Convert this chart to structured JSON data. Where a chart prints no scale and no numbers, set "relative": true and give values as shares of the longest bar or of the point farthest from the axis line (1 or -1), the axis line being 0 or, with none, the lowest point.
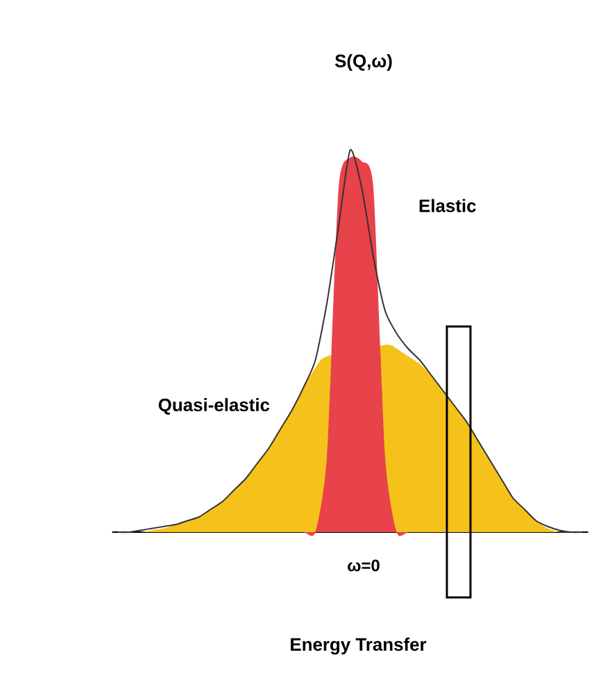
{
  "chart_data": {
    "type": "area",
    "relative": true,
    "title": "S(Q,ω)",
    "categories": [
      null,
      null,
      null,
      null,
      null,
      null,
      null,
      null,
      null,
      null,
      null,
      null,
      null,
      null,
      null,
      null,
      null,
      null,
      null,
      null,
      null,
      null,
      null,
      null,
      null,
      null,
      null,
      null,
      null,
      null,
      null,
      null,
      null,
      null,
      null,
      null,
      null,
      null,
      null,
      null,
      null
    ],
    "series": [
      {
        "name": "Quasi-elastic",
        "type": "area",
        "color": "#f5c21b",
        "values": [
          0,
          0,
          0,
          0.005,
          0.01,
          0.02,
          0.03,
          0.04,
          0.06,
          0.08,
          0.11,
          0.14,
          0.18,
          0.22,
          0.27,
          0.32,
          0.38,
          0.43,
          0.46,
          null,
          null,
          null,
          null,
          0.49,
          0.48,
          0.46,
          0.44,
          0.41,
          0.37,
          0.33,
          0.29,
          0.24,
          0.19,
          0.14,
          0.09,
          0.06,
          0.03,
          0.01,
          0,
          0,
          0
        ]
      },
      {
        "name": "Elastic",
        "type": "area",
        "color": "#e8424a",
        "values": [
          0,
          0,
          0,
          0,
          0,
          0,
          0,
          0,
          0,
          0,
          0,
          0,
          0,
          0,
          0,
          0,
          0,
          0,
          0.2,
          0.9,
          0.98,
          0.97,
          0.9,
          0.2,
          0,
          0,
          0,
          0,
          0,
          0,
          0,
          0,
          0,
          0,
          0,
          0,
          0,
          0,
          0,
          0,
          0
        ]
      },
      {
        "type": "line",
        "color": "#333333",
        "values": [
          0,
          0,
          0.005,
          0.01,
          0.015,
          0.02,
          0.03,
          0.04,
          0.06,
          0.08,
          0.11,
          0.14,
          0.18,
          0.22,
          0.27,
          0.32,
          0.38,
          0.45,
          0.6,
          0.8,
          1,
          0.9,
          0.72,
          0.58,
          0.52,
          0.48,
          0.45,
          0.41,
          0.37,
          0.33,
          0.29,
          0.24,
          0.19,
          0.14,
          0.09,
          0.06,
          0.03,
          0.015,
          0.005,
          0,
          0
        ]
      }
    ],
    "annotations": [
      "ω=0",
      "Energy Transfer"
    ]
  }
}
